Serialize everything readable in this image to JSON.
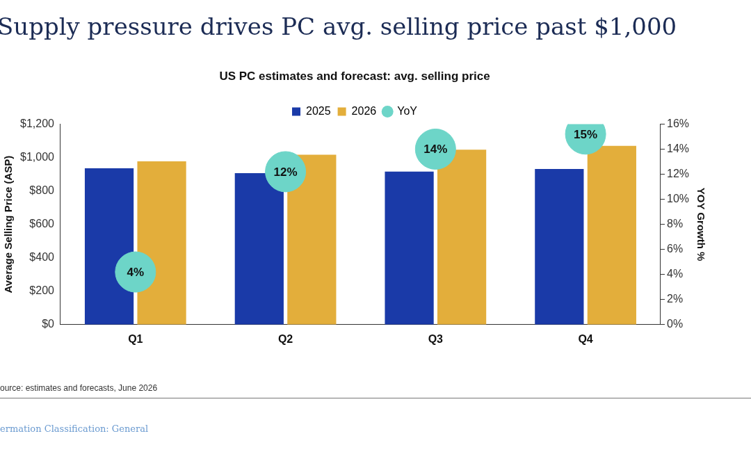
{
  "chart_data": {
    "type": "bar",
    "title": "Supply pressure drives PC avg. selling price past $1,000",
    "subtitle": "US PC estimates and forecast: avg. selling price",
    "ylabel": "Average Selling Price (ASP)",
    "y2label": "YOY Growth %",
    "categories": [
      "Q1",
      "Q2",
      "Q3",
      "Q4"
    ],
    "series": [
      {
        "name": "2025",
        "color": "#1a3aa8",
        "values": [
          935,
          906,
          916,
          931
        ]
      },
      {
        "name": "2026",
        "color": "#e3ae3b",
        "values": [
          977,
          1016,
          1047,
          1070
        ]
      },
      {
        "name": "YoY",
        "type": "scatter",
        "axis": "y2",
        "color": "#6dd5c8",
        "x": [
          "Q1",
          "Q2",
          "Q3",
          "Q4"
        ],
        "values": [
          4.2,
          12.2,
          14.0,
          15.2
        ],
        "value_labels": [
          "4%",
          "12%",
          "14%",
          "15%"
        ]
      }
    ],
    "ylim": [
      0,
      1200
    ],
    "yticks": [
      {
        "value": 0,
        "label": "$0"
      },
      {
        "value": 200,
        "label": "$200"
      },
      {
        "value": 400,
        "label": "$400"
      },
      {
        "value": 600,
        "label": "$600"
      },
      {
        "value": 800,
        "label": "$800"
      },
      {
        "value": 1000,
        "label": "$1,000"
      },
      {
        "value": 1200,
        "label": "$1,200"
      }
    ],
    "y2lim": [
      0,
      16
    ],
    "y2ticks": [
      {
        "value": 0,
        "label": "0%"
      },
      {
        "value": 2,
        "label": "2%"
      },
      {
        "value": 4,
        "label": "4%"
      },
      {
        "value": 6,
        "label": "6%"
      },
      {
        "value": 8,
        "label": "8%"
      },
      {
        "value": 10,
        "label": "10%"
      },
      {
        "value": 12,
        "label": "12%"
      },
      {
        "value": 14,
        "label": "14%"
      },
      {
        "value": 16,
        "label": "16%"
      }
    ],
    "grid": false,
    "legend": "top",
    "marker": "circle",
    "annotations": [
      "ource: estimates and forecasts, June 2026",
      "ermation Classification: General"
    ]
  }
}
